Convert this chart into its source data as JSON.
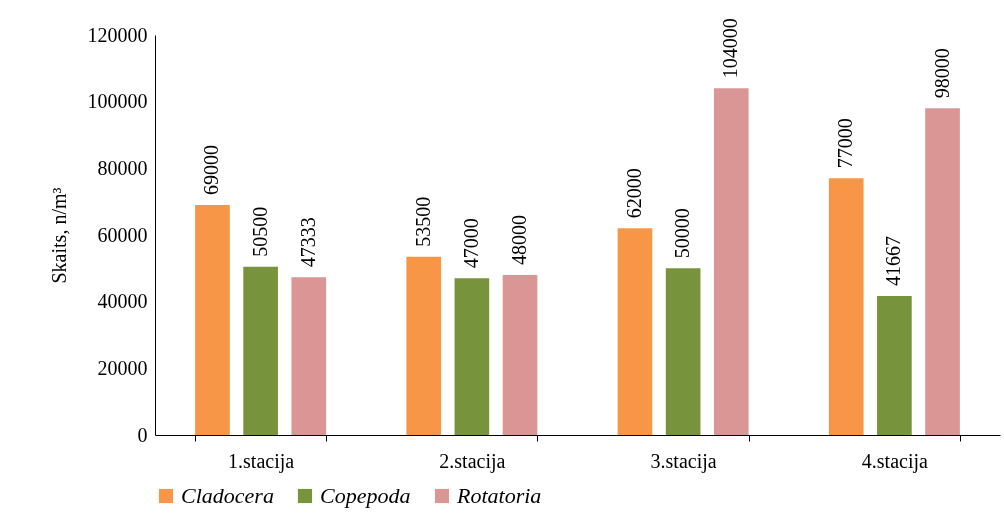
{
  "chart_data": {
    "type": "bar",
    "ylabel": "Skaits, n/m³",
    "categories": [
      "1.stacija",
      "2.stacija",
      "3.stacija",
      "4.stacija"
    ],
    "series": [
      {
        "name": "Cladocera",
        "color": "#f79646",
        "values": [
          69000,
          53500,
          62000,
          77000
        ]
      },
      {
        "name": "Copepoda",
        "color": "#77933c",
        "values": [
          50500,
          47000,
          50000,
          41667
        ]
      },
      {
        "name": "Rotatoria",
        "color": "#d99694",
        "values": [
          47333,
          48000,
          104000,
          98000
        ]
      }
    ],
    "ylim": [
      0,
      120000
    ],
    "yticks": [
      0,
      20000,
      40000,
      60000,
      80000,
      100000,
      120000
    ],
    "data_labels": true,
    "legend": "bottom",
    "grid": false
  }
}
